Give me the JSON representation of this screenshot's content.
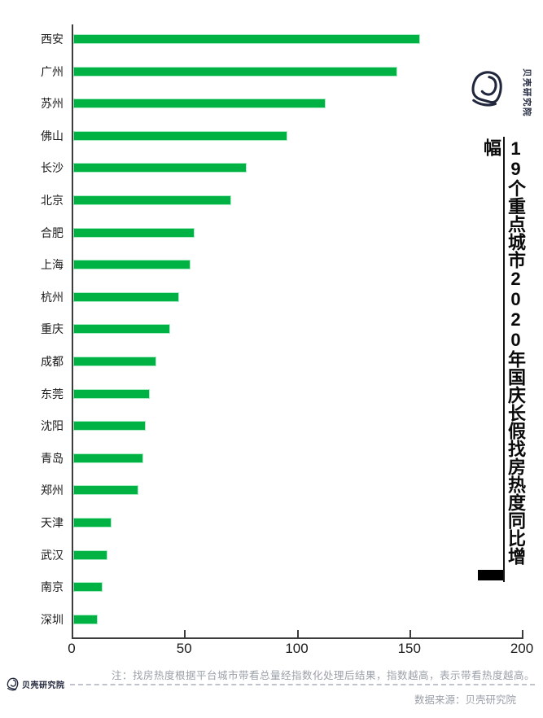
{
  "title": {
    "text": "19个重点城市2020年国庆长假找房热度同比增幅"
  },
  "brand": {
    "vertical_label": "贝壳研究院"
  },
  "chart_data": {
    "type": "bar",
    "orientation": "horizontal",
    "title": "19个重点城市2020年国庆长假找房热度同比增幅",
    "categories": [
      "西安",
      "广州",
      "苏州",
      "佛山",
      "长沙",
      "北京",
      "合肥",
      "上海",
      "杭州",
      "重庆",
      "成都",
      "东莞",
      "沈阳",
      "青岛",
      "郑州",
      "天津",
      "武汉",
      "南京",
      "深圳"
    ],
    "values": [
      154,
      144,
      112,
      95,
      77,
      70,
      54,
      52,
      47,
      43,
      37,
      34,
      32,
      31,
      29,
      17,
      15,
      13,
      11
    ],
    "xlim": [
      0,
      200
    ],
    "x_ticks": [
      "0",
      "50",
      "100",
      "150",
      "200"
    ],
    "grid": false,
    "legend": false,
    "bar_color": "#00b143"
  },
  "footer": {
    "note": "注：找房热度根据平台城市带看总量经指数化处理后结果，指数越高，表示带看热度越高。",
    "source": "数据来源：贝壳研究院",
    "brand": "贝壳研究院"
  },
  "colors": {
    "bar": "#00b143",
    "logo_dark": "#20263c",
    "axis": "#3c3c3c",
    "muted_text": "#9ba0a8"
  }
}
